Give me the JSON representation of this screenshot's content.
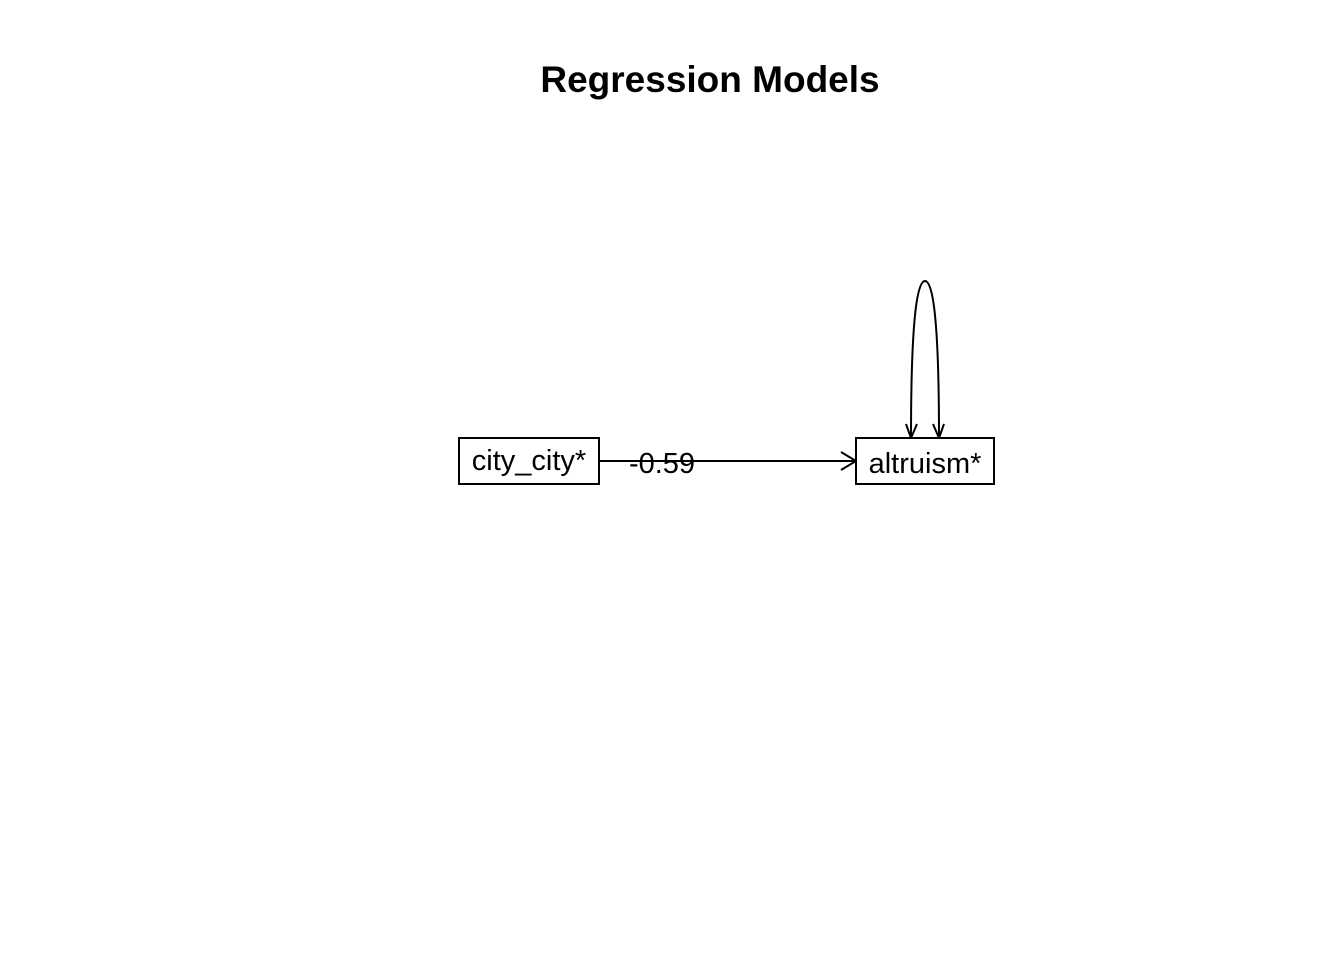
{
  "title": "Regression Models",
  "nodes": [
    {
      "id": "city_city",
      "label": "city_city*"
    },
    {
      "id": "altruism",
      "label": "altruism*"
    }
  ],
  "edges": [
    {
      "from": "city_city",
      "to": "altruism",
      "label": "-0.59",
      "type": "regression"
    },
    {
      "from": "altruism",
      "to": "altruism",
      "label": "",
      "type": "residual-variance"
    }
  ]
}
